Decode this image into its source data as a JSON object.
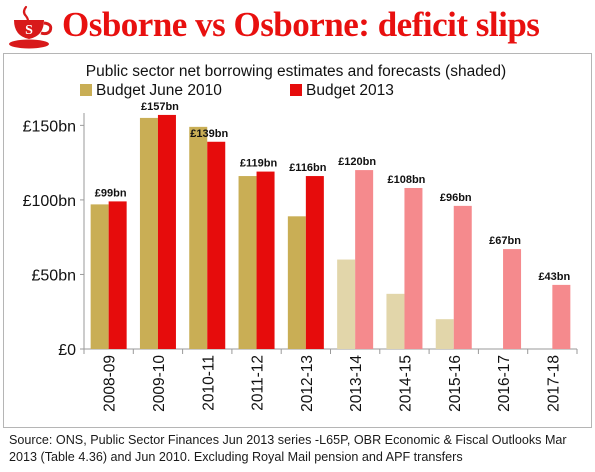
{
  "header": {
    "title": "Osborne vs Osborne: deficit slips",
    "logo_letter": "S",
    "logo_icon": "teacup-icon"
  },
  "footer": {
    "source": "Source: ONS, Public Sector Finances Jun 2013 series -L65P, OBR Economic & Fiscal Outlooks Mar 2013 (Table 4.36) and Jun 2010. Excluding Royal Mail pension and APF transfers"
  },
  "colors": {
    "title": "#e8100f",
    "budget_2010": "#c9ae55",
    "budget_2010_forecast": "#e2d6aa",
    "budget_2013": "#e60c0c",
    "budget_2013_forecast": "#f58a8d",
    "logo": "#d8191a"
  },
  "chart_data": {
    "type": "bar",
    "title": "Public sector net borrowing estimates and forecasts (shaded)",
    "categories": [
      "2008-09",
      "2009-10",
      "2010-11",
      "2011-12",
      "2012-13",
      "2013-14",
      "2014-15",
      "2015-16",
      "2016-17",
      "2017-18"
    ],
    "series": [
      {
        "name": "Budget June 2010",
        "values": [
          97,
          155,
          149,
          116,
          89,
          60,
          37,
          20,
          null,
          null
        ]
      },
      {
        "name": "Budget 2013",
        "values": [
          99,
          157,
          139,
          119,
          116,
          120,
          108,
          96,
          67,
          43
        ]
      }
    ],
    "data_labels": [
      "£99bn",
      "£157bn",
      "£139bn",
      "£119bn",
      "£116bn",
      "£120bn",
      "£108bn",
      "£96bn",
      "£67bn",
      "£43bn"
    ],
    "shaded_from_category": "2013-14",
    "y_ticks": [
      0,
      50,
      100,
      150
    ],
    "y_tick_labels": [
      "£0",
      "£50bn",
      "£100bn",
      "£150bn"
    ],
    "ylim": [
      0,
      165
    ],
    "grid": false,
    "legend_position": "top"
  }
}
